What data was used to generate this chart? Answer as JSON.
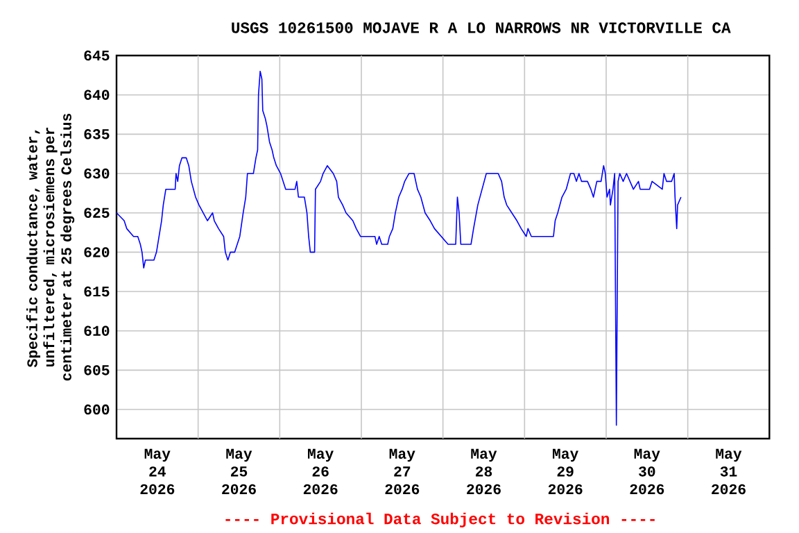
{
  "chart_data": {
    "type": "line",
    "title": "USGS 10261500 MOJAVE R A LO NARROWS NR VICTORVILLE CA",
    "ylabel": "Specific conductance, water, unfiltered, microsiemens per centimeter at 25 degrees Celsius",
    "annotations": [
      "---- Provisional Data Subject to Revision ----"
    ],
    "xlim": [
      "2026-05-24T00:00",
      "2026-06-01T00:00"
    ],
    "xticks": [
      {
        "value": "2026-05-24T12:00",
        "label": "May 24 2026"
      },
      {
        "value": "2026-05-25T12:00",
        "label": "May 25 2026"
      },
      {
        "value": "2026-05-26T12:00",
        "label": "May 26 2026"
      },
      {
        "value": "2026-05-27T12:00",
        "label": "May 27 2026"
      },
      {
        "value": "2026-05-28T12:00",
        "label": "May 28 2026"
      },
      {
        "value": "2026-05-29T12:00",
        "label": "May 29 2026"
      },
      {
        "value": "2026-05-30T12:00",
        "label": "May 30 2026"
      },
      {
        "value": "2026-05-31T12:00",
        "label": "May 31 2026"
      },
      {
        "value": "2026-05-25T00:00",
        "label": null
      },
      {
        "value": "2026-05-26T00:00",
        "label": null
      },
      {
        "value": "2026-05-27T00:00",
        "label": null
      },
      {
        "value": "2026-05-28T00:00",
        "label": null
      },
      {
        "value": "2026-05-29T00:00",
        "label": null
      },
      {
        "value": "2026-05-30T00:00",
        "label": null
      },
      {
        "value": "2026-05-31T00:00",
        "label": null
      }
    ],
    "ylim": [
      596.3,
      645
    ],
    "yticks": [
      600,
      605,
      610,
      615,
      620,
      625,
      630,
      635,
      640,
      645
    ],
    "grid": true,
    "series": [
      {
        "color": "#0000ff",
        "x": [
          "2026-05-24T00:00",
          "2026-05-24T02:15",
          "2026-05-24T03:00",
          "2026-05-24T05:00",
          "2026-05-24T06:15",
          "2026-05-24T07:00",
          "2026-05-24T07:30",
          "2026-05-24T08:00",
          "2026-05-24T08:30",
          "2026-05-24T11:00",
          "2026-05-24T11:45",
          "2026-05-24T12:30",
          "2026-05-24T13:15",
          "2026-05-24T13:45",
          "2026-05-24T14:30",
          "2026-05-24T17:15",
          "2026-05-24T17:30",
          "2026-05-24T18:00",
          "2026-05-24T18:30",
          "2026-05-24T19:15",
          "2026-05-24T20:30",
          "2026-05-24T21:15",
          "2026-05-24T22:00",
          "2026-05-24T23:15",
          "2026-05-25T00:15",
          "2026-05-25T01:30",
          "2026-05-25T02:45",
          "2026-05-25T04:15",
          "2026-05-25T04:45",
          "2026-05-25T06:00",
          "2026-05-25T07:30",
          "2026-05-25T08:00",
          "2026-05-25T08:45",
          "2026-05-25T09:30",
          "2026-05-25T10:45",
          "2026-05-25T12:15",
          "2026-05-25T13:15",
          "2026-05-25T14:00",
          "2026-05-25T14:30",
          "2026-05-25T16:15",
          "2026-05-25T17:00",
          "2026-05-25T17:30",
          "2026-05-25T17:45",
          "2026-05-25T18:15",
          "2026-05-25T18:45",
          "2026-05-25T19:00",
          "2026-05-25T19:45",
          "2026-05-25T20:15",
          "2026-05-25T21:00",
          "2026-05-25T21:45",
          "2026-05-25T22:15",
          "2026-05-25T23:00",
          "2026-05-26T00:15",
          "2026-05-26T01:45",
          "2026-05-26T04:30",
          "2026-05-26T05:00",
          "2026-05-26T05:30",
          "2026-05-26T07:15",
          "2026-05-26T08:00",
          "2026-05-26T08:30",
          "2026-05-26T09:00",
          "2026-05-26T10:15",
          "2026-05-26T10:30",
          "2026-05-26T12:00",
          "2026-05-26T12:45",
          "2026-05-26T14:00",
          "2026-05-26T15:45",
          "2026-05-26T16:45",
          "2026-05-26T17:15",
          "2026-05-26T18:30",
          "2026-05-26T19:30",
          "2026-05-26T21:30",
          "2026-05-26T22:30",
          "2026-05-26T23:45",
          "2026-05-27T04:00",
          "2026-05-27T04:30",
          "2026-05-27T05:15",
          "2026-05-27T06:00",
          "2026-05-27T07:45",
          "2026-05-27T08:15",
          "2026-05-27T09:15",
          "2026-05-27T10:00",
          "2026-05-27T11:00",
          "2026-05-27T12:00",
          "2026-05-27T12:45",
          "2026-05-27T14:00",
          "2026-05-27T15:30",
          "2026-05-27T16:30",
          "2026-05-27T17:30",
          "2026-05-27T18:45",
          "2026-05-27T20:15",
          "2026-05-27T21:30",
          "2026-05-27T23:30",
          "2026-05-28T01:30",
          "2026-05-28T03:45",
          "2026-05-28T04:15",
          "2026-05-28T04:45",
          "2026-05-28T05:15",
          "2026-05-28T08:15",
          "2026-05-28T09:00",
          "2026-05-28T10:15",
          "2026-05-28T11:30",
          "2026-05-28T12:45",
          "2026-05-28T16:15",
          "2026-05-28T17:15",
          "2026-05-28T18:00",
          "2026-05-28T18:45",
          "2026-05-28T20:15",
          "2026-05-28T21:45",
          "2026-05-28T23:00",
          "2026-05-29T00:30",
          "2026-05-29T01:00",
          "2026-05-29T02:00",
          "2026-05-29T08:30",
          "2026-05-29T09:00",
          "2026-05-29T09:45",
          "2026-05-29T11:00",
          "2026-05-29T12:15",
          "2026-05-29T13:30",
          "2026-05-29T14:30",
          "2026-05-29T15:15",
          "2026-05-29T16:00",
          "2026-05-29T16:45",
          "2026-05-29T18:30",
          "2026-05-29T19:30",
          "2026-05-29T20:15",
          "2026-05-29T21:15",
          "2026-05-29T22:30",
          "2026-05-29T23:15",
          "2026-05-29T23:45",
          "2026-05-30T00:15",
          "2026-05-30T01:00",
          "2026-05-30T01:15",
          "2026-05-30T02:00",
          "2026-05-30T02:30",
          "2026-05-30T03:00",
          "2026-05-30T03:15",
          "2026-05-30T03:30",
          "2026-05-30T04:00",
          "2026-05-30T05:00",
          "2026-05-30T06:00",
          "2026-05-30T07:00",
          "2026-05-30T08:00",
          "2026-05-30T09:30",
          "2026-05-30T10:00",
          "2026-05-30T12:45",
          "2026-05-30T13:30",
          "2026-05-30T16:30",
          "2026-05-30T17:00",
          "2026-05-30T17:45",
          "2026-05-30T19:15",
          "2026-05-30T20:00",
          "2026-05-30T20:15",
          "2026-05-30T20:45",
          "2026-05-30T21:00",
          "2026-05-30T22:00"
        ],
        "values": [
          625,
          624,
          623,
          622,
          622,
          621,
          620,
          618,
          619,
          619,
          620,
          622,
          624,
          626,
          628,
          628,
          630,
          629,
          631,
          632,
          632,
          631,
          629,
          627,
          626,
          625,
          624,
          625,
          624,
          623,
          622,
          620,
          619,
          620,
          620,
          622,
          625,
          627,
          630,
          630,
          632,
          633,
          640,
          643,
          642,
          638,
          637,
          636,
          634,
          633,
          632,
          631,
          630,
          628,
          628,
          629,
          627,
          627,
          625,
          622,
          620,
          620,
          628,
          629,
          630,
          631,
          630,
          629,
          627,
          626,
          625,
          624,
          623,
          622,
          622,
          621,
          622,
          621,
          621,
          622,
          623,
          625,
          627,
          628,
          629,
          630,
          630,
          628,
          627,
          625,
          624,
          623,
          622,
          621,
          621,
          627,
          625,
          621,
          621,
          623,
          626,
          628,
          630,
          630,
          629,
          627,
          626,
          625,
          624,
          623,
          622,
          623,
          622,
          622,
          624,
          625,
          627,
          628,
          630,
          630,
          629,
          630,
          629,
          629,
          628,
          627,
          629,
          629,
          631,
          630,
          627,
          628,
          626,
          628,
          630,
          598,
          614,
          629,
          630,
          629,
          630,
          629,
          628,
          629,
          628,
          628,
          629,
          628,
          630,
          629,
          629,
          630,
          627,
          623,
          626,
          627
        ]
      }
    ]
  }
}
